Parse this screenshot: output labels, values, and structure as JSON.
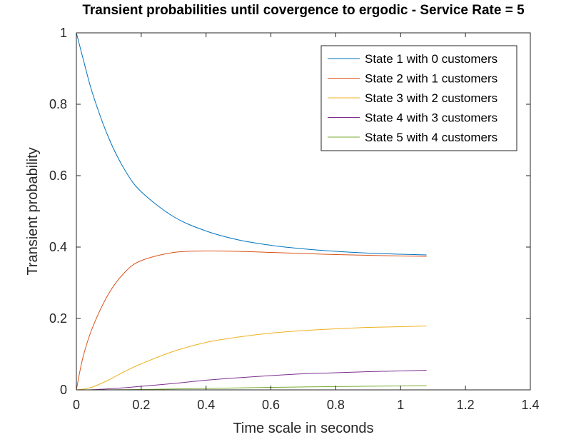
{
  "chart_data": {
    "type": "line",
    "title": "Transient probabilities until covergence to ergodic - Service Rate = 5",
    "xlabel": "Time scale in seconds",
    "ylabel": "Transient probability",
    "xlim": [
      0,
      1.4
    ],
    "ylim": [
      0,
      1
    ],
    "xticks": [
      0,
      0.2,
      0.4,
      0.6,
      0.8,
      1,
      1.2,
      1.4
    ],
    "xtick_labels": [
      "0",
      "0.2",
      "0.4",
      "0.6",
      "0.8",
      "1",
      "1.2",
      "1.4"
    ],
    "yticks": [
      0,
      0.2,
      0.4,
      0.6,
      0.8,
      1
    ],
    "ytick_labels": [
      "0",
      "0.2",
      "0.4",
      "0.6",
      "0.8",
      "1"
    ],
    "grid": false,
    "legend_position": "top-right",
    "x": [
      0,
      0.02,
      0.05,
      0.1,
      0.15,
      0.2,
      0.3,
      0.4,
      0.5,
      0.6,
      0.7,
      0.8,
      0.9,
      1.0,
      1.08
    ],
    "series": [
      {
        "name": "State 1 with 0 customers",
        "color": "#0072BD",
        "values": [
          1.0,
          0.93,
          0.83,
          0.705,
          0.615,
          0.555,
          0.485,
          0.445,
          0.42,
          0.405,
          0.395,
          0.388,
          0.383,
          0.38,
          0.378
        ]
      },
      {
        "name": "State 2 with 1 customers",
        "color": "#D95319",
        "values": [
          0.0,
          0.09,
          0.175,
          0.27,
          0.33,
          0.362,
          0.385,
          0.389,
          0.388,
          0.385,
          0.382,
          0.379,
          0.377,
          0.375,
          0.374
        ]
      },
      {
        "name": "State 3 with 2 customers",
        "color": "#EDB120",
        "values": [
          0.0,
          0.002,
          0.008,
          0.028,
          0.052,
          0.073,
          0.108,
          0.133,
          0.148,
          0.159,
          0.166,
          0.171,
          0.175,
          0.177,
          0.179
        ]
      },
      {
        "name": "State 4 with 3 customers",
        "color": "#7E2F8E",
        "values": [
          0.0,
          0.0,
          0.0005,
          0.003,
          0.006,
          0.01,
          0.018,
          0.027,
          0.034,
          0.04,
          0.045,
          0.048,
          0.051,
          0.053,
          0.055
        ]
      },
      {
        "name": "State 5 with 4 customers",
        "color": "#77AC30",
        "values": [
          0.0,
          0.0,
          0.0,
          0.0002,
          0.0006,
          0.001,
          0.0025,
          0.004,
          0.0055,
          0.007,
          0.0082,
          0.0092,
          0.0102,
          0.011,
          0.0118
        ]
      }
    ]
  }
}
